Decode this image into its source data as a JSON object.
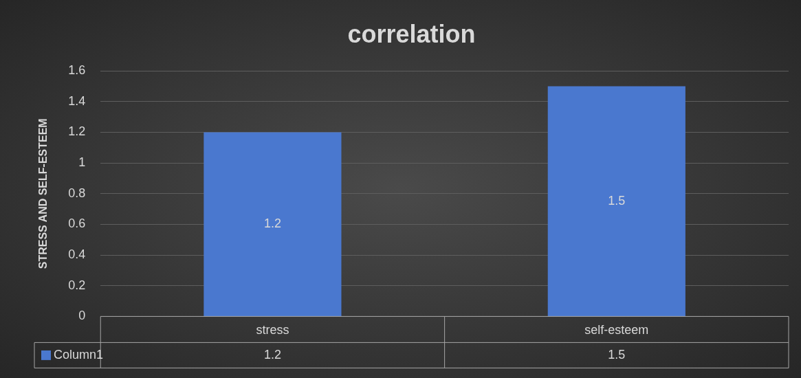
{
  "chart_data": {
    "type": "bar",
    "title": "correlation",
    "ylabel": "STRESS AND SELF-ESTEEM",
    "categories": [
      "stress",
      "self-esteem"
    ],
    "series": [
      {
        "name": "Column1",
        "color": "#4a78cf",
        "values": [
          1.2,
          1.5
        ]
      }
    ],
    "ylim": [
      0,
      1.6
    ],
    "yticks": [
      0,
      0.2,
      0.4,
      0.6,
      0.8,
      1,
      1.2,
      1.4,
      1.6
    ],
    "grid": "y",
    "legend": "bottom",
    "data_labels": true,
    "annotations": [
      "1.2",
      "1.5"
    ]
  }
}
